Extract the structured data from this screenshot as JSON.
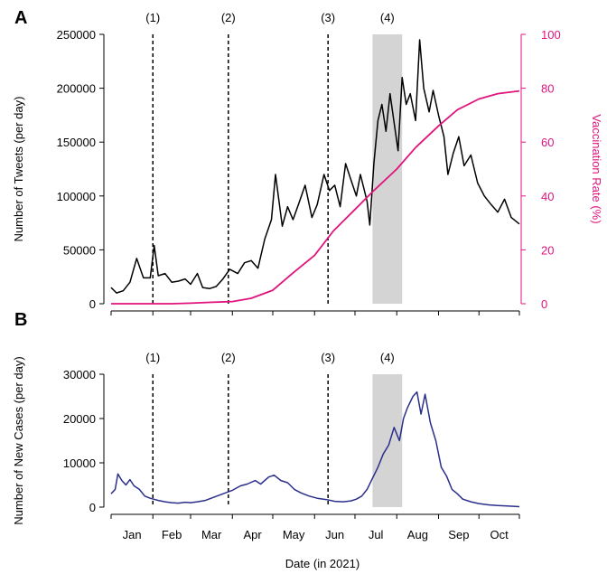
{
  "figure": {
    "xlabel": "Date (in 2021)"
  },
  "colors": {
    "tweets": "#000000",
    "vaccination": "#e0147d",
    "cases": "#2a2f8c",
    "shade": "#d4d4d4",
    "axis": "#000000"
  },
  "chart_data": [
    {
      "panel": "A",
      "type": "line",
      "x_range": [
        "2021-01-01",
        "2021-10-31"
      ],
      "ylabel": "Number of Tweets (per day)",
      "y2label": "Vaccination Rate (%)",
      "ylim": [
        0,
        250000
      ],
      "yticks": [
        "0",
        "50000",
        "100000",
        "150000",
        "200000",
        "250000"
      ],
      "y2lim": [
        0,
        100
      ],
      "y2ticks": [
        "0",
        "20",
        "40",
        "60",
        "80",
        "100"
      ],
      "events": [
        {
          "label": "(1)",
          "date": "2021-02-01"
        },
        {
          "label": "(2)",
          "date": "2021-03-29"
        },
        {
          "label": "(3)",
          "date": "2021-06-11"
        }
      ],
      "shaded": {
        "label": "(4)",
        "start": "2021-07-14",
        "end": "2021-08-05"
      },
      "series": [
        {
          "name": "Tweets",
          "axis": "left",
          "color": "#000000",
          "points": [
            [
              "2021-01-01",
              15000
            ],
            [
              "2021-01-05",
              10000
            ],
            [
              "2021-01-10",
              12000
            ],
            [
              "2021-01-15",
              20000
            ],
            [
              "2021-01-20",
              42000
            ],
            [
              "2021-01-25",
              24000
            ],
            [
              "2021-01-30",
              24000
            ],
            [
              "2021-02-02",
              54000
            ],
            [
              "2021-02-05",
              26000
            ],
            [
              "2021-02-10",
              28000
            ],
            [
              "2021-02-15",
              20000
            ],
            [
              "2021-02-20",
              21000
            ],
            [
              "2021-02-25",
              23000
            ],
            [
              "2021-03-01",
              18000
            ],
            [
              "2021-03-06",
              28000
            ],
            [
              "2021-03-10",
              15000
            ],
            [
              "2021-03-15",
              14000
            ],
            [
              "2021-03-20",
              16000
            ],
            [
              "2021-03-25",
              23000
            ],
            [
              "2021-03-30",
              32000
            ],
            [
              "2021-04-05",
              28000
            ],
            [
              "2021-04-10",
              38000
            ],
            [
              "2021-04-15",
              40000
            ],
            [
              "2021-04-20",
              33000
            ],
            [
              "2021-04-25",
              60000
            ],
            [
              "2021-04-30",
              78000
            ],
            [
              "2021-05-03",
              120000
            ],
            [
              "2021-05-08",
              72000
            ],
            [
              "2021-05-12",
              90000
            ],
            [
              "2021-05-16",
              78000
            ],
            [
              "2021-05-20",
              92000
            ],
            [
              "2021-05-25",
              110000
            ],
            [
              "2021-05-30",
              80000
            ],
            [
              "2021-06-03",
              92000
            ],
            [
              "2021-06-08",
              120000
            ],
            [
              "2021-06-12",
              105000
            ],
            [
              "2021-06-16",
              110000
            ],
            [
              "2021-06-20",
              90000
            ],
            [
              "2021-06-24",
              130000
            ],
            [
              "2021-06-28",
              115000
            ],
            [
              "2021-07-02",
              100000
            ],
            [
              "2021-07-05",
              120000
            ],
            [
              "2021-07-10",
              95000
            ],
            [
              "2021-07-12",
              73000
            ],
            [
              "2021-07-15",
              130000
            ],
            [
              "2021-07-18",
              170000
            ],
            [
              "2021-07-21",
              185000
            ],
            [
              "2021-07-24",
              160000
            ],
            [
              "2021-07-27",
              195000
            ],
            [
              "2021-07-30",
              168000
            ],
            [
              "2021-08-02",
              142000
            ],
            [
              "2021-08-05",
              210000
            ],
            [
              "2021-08-08",
              185000
            ],
            [
              "2021-08-11",
              195000
            ],
            [
              "2021-08-15",
              170000
            ],
            [
              "2021-08-18",
              245000
            ],
            [
              "2021-08-21",
              200000
            ],
            [
              "2021-08-25",
              178000
            ],
            [
              "2021-08-28",
              198000
            ],
            [
              "2021-09-01",
              175000
            ],
            [
              "2021-09-05",
              155000
            ],
            [
              "2021-09-08",
              120000
            ],
            [
              "2021-09-12",
              140000
            ],
            [
              "2021-09-16",
              155000
            ],
            [
              "2021-09-20",
              128000
            ],
            [
              "2021-09-25",
              138000
            ],
            [
              "2021-09-30",
              112000
            ],
            [
              "2021-10-05",
              100000
            ],
            [
              "2021-10-10",
              92000
            ],
            [
              "2021-10-15",
              85000
            ],
            [
              "2021-10-20",
              97000
            ],
            [
              "2021-10-25",
              80000
            ],
            [
              "2021-10-31",
              74000
            ]
          ]
        },
        {
          "name": "Vaccination Rate",
          "axis": "right",
          "color": "#e0147d",
          "points": [
            [
              "2021-01-01",
              0
            ],
            [
              "2021-02-15",
              0
            ],
            [
              "2021-03-01",
              0.2
            ],
            [
              "2021-03-15",
              0.5
            ],
            [
              "2021-04-01",
              0.8
            ],
            [
              "2021-04-15",
              2
            ],
            [
              "2021-05-01",
              5
            ],
            [
              "2021-05-15",
              11
            ],
            [
              "2021-06-01",
              18
            ],
            [
              "2021-06-15",
              27
            ],
            [
              "2021-07-01",
              35
            ],
            [
              "2021-07-15",
              42
            ],
            [
              "2021-08-01",
              50
            ],
            [
              "2021-08-15",
              58
            ],
            [
              "2021-09-01",
              66
            ],
            [
              "2021-09-15",
              72
            ],
            [
              "2021-10-01",
              76
            ],
            [
              "2021-10-15",
              78
            ],
            [
              "2021-10-31",
              79
            ]
          ]
        }
      ]
    },
    {
      "panel": "B",
      "type": "line",
      "x_range": [
        "2021-01-01",
        "2021-10-31"
      ],
      "ylabel": "Number of New Cases (per day)",
      "ylim": [
        0,
        30000
      ],
      "yticks": [
        "0",
        "10000",
        "20000",
        "30000"
      ],
      "xticks": [
        "Jan",
        "Feb",
        "Mar",
        "Apr",
        "May",
        "Jun",
        "Jul",
        "Aug",
        "Sep",
        "Oct"
      ],
      "events": [
        {
          "label": "(1)",
          "date": "2021-02-01"
        },
        {
          "label": "(2)",
          "date": "2021-03-29"
        },
        {
          "label": "(3)",
          "date": "2021-06-11"
        }
      ],
      "shaded": {
        "label": "(4)",
        "start": "2021-07-14",
        "end": "2021-08-05"
      },
      "series": [
        {
          "name": "New Cases",
          "axis": "left",
          "color": "#2a2f8c",
          "points": [
            [
              "2021-01-01",
              3000
            ],
            [
              "2021-01-04",
              4000
            ],
            [
              "2021-01-06",
              7500
            ],
            [
              "2021-01-09",
              6000
            ],
            [
              "2021-01-12",
              5000
            ],
            [
              "2021-01-15",
              6200
            ],
            [
              "2021-01-18",
              4800
            ],
            [
              "2021-01-22",
              4000
            ],
            [
              "2021-01-26",
              2500
            ],
            [
              "2021-01-30",
              2000
            ],
            [
              "2021-02-05",
              1500
            ],
            [
              "2021-02-10",
              1200
            ],
            [
              "2021-02-15",
              1000
            ],
            [
              "2021-02-20",
              900
            ],
            [
              "2021-02-25",
              1100
            ],
            [
              "2021-03-01",
              1000
            ],
            [
              "2021-03-06",
              1200
            ],
            [
              "2021-03-12",
              1500
            ],
            [
              "2021-03-18",
              2200
            ],
            [
              "2021-03-25",
              3000
            ],
            [
              "2021-04-01",
              3800
            ],
            [
              "2021-04-07",
              4800
            ],
            [
              "2021-04-12",
              5200
            ],
            [
              "2021-04-18",
              6000
            ],
            [
              "2021-04-22",
              5200
            ],
            [
              "2021-04-28",
              6800
            ],
            [
              "2021-05-02",
              7200
            ],
            [
              "2021-05-07",
              6000
            ],
            [
              "2021-05-12",
              5500
            ],
            [
              "2021-05-17",
              4000
            ],
            [
              "2021-05-22",
              3200
            ],
            [
              "2021-05-28",
              2500
            ],
            [
              "2021-06-03",
              2000
            ],
            [
              "2021-06-10",
              1700
            ],
            [
              "2021-06-16",
              1300
            ],
            [
              "2021-06-22",
              1200
            ],
            [
              "2021-06-28",
              1400
            ],
            [
              "2021-07-02",
              1800
            ],
            [
              "2021-07-06",
              2500
            ],
            [
              "2021-07-10",
              4000
            ],
            [
              "2021-07-14",
              6500
            ],
            [
              "2021-07-18",
              9000
            ],
            [
              "2021-07-22",
              12000
            ],
            [
              "2021-07-26",
              14000
            ],
            [
              "2021-07-30",
              18000
            ],
            [
              "2021-08-03",
              15000
            ],
            [
              "2021-08-06",
              20000
            ],
            [
              "2021-08-09",
              22500
            ],
            [
              "2021-08-13",
              25000
            ],
            [
              "2021-08-16",
              26000
            ],
            [
              "2021-08-19",
              21000
            ],
            [
              "2021-08-22",
              25500
            ],
            [
              "2021-08-26",
              19000
            ],
            [
              "2021-08-30",
              15000
            ],
            [
              "2021-09-03",
              9000
            ],
            [
              "2021-09-07",
              7000
            ],
            [
              "2021-09-11",
              4000
            ],
            [
              "2021-09-15",
              3000
            ],
            [
              "2021-09-19",
              1800
            ],
            [
              "2021-09-25",
              1200
            ],
            [
              "2021-10-01",
              800
            ],
            [
              "2021-10-08",
              500
            ],
            [
              "2021-10-15",
              350
            ],
            [
              "2021-10-22",
              250
            ],
            [
              "2021-10-31",
              100
            ]
          ]
        }
      ]
    }
  ]
}
